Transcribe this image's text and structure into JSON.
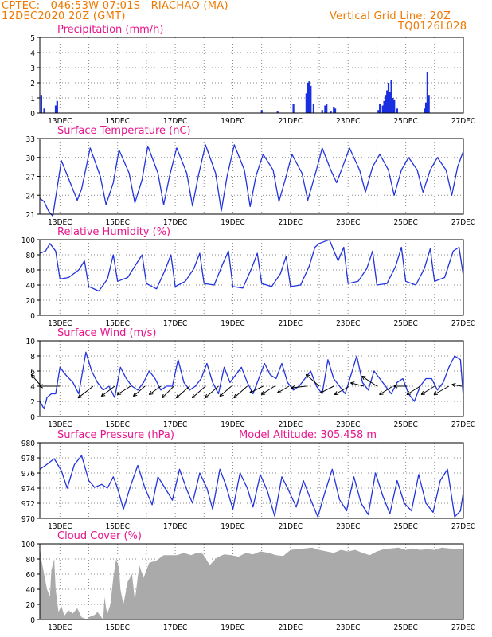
{
  "header": {
    "line1_left": "CPTEC:   046:53W-07:01S   RIACHAO (MA)",
    "line2_left": "12DEC2020 20Z (GMT)",
    "line1_right": "Vertical Grid Line: 20Z",
    "line2_right": "TQ0126L028"
  },
  "x_axis": {
    "labels": [
      "13DEC",
      "15DEC",
      "17DEC",
      "19DEC",
      "21DEC",
      "23DEC",
      "25DEC",
      "27DEC"
    ],
    "label_days": [
      13,
      15,
      17,
      19,
      21,
      23,
      25,
      27
    ],
    "start_day": 12.3,
    "end_day": 27.0
  },
  "colors": {
    "line": "#2233dd",
    "bar": "#1a2fe0",
    "cloud": "#aaaaaa",
    "title": "#e8168c",
    "header": "#f07800",
    "grid": "#888888"
  },
  "extra": {
    "model_altitude": "Model Altitude: 305.458 m"
  },
  "chart_data": [
    {
      "id": "precip",
      "type": "bar",
      "title": "Precipitation (mm/h)",
      "ylim": [
        0,
        5
      ],
      "yticks": [
        0,
        1,
        2,
        3,
        4,
        5
      ],
      "x": [
        12.35,
        12.45,
        12.85,
        12.9,
        20.0,
        20.55,
        21.1,
        21.55,
        21.6,
        21.65,
        21.7,
        21.8,
        22.1,
        22.2,
        22.25,
        22.4,
        22.5,
        22.55,
        24.05,
        24.1,
        24.2,
        24.25,
        24.3,
        24.35,
        24.4,
        24.45,
        24.5,
        24.55,
        24.6,
        24.7,
        25.65,
        25.7,
        25.75,
        25.8
      ],
      "values": [
        1.2,
        0.3,
        0.5,
        0.8,
        0.2,
        0.1,
        0.6,
        1.3,
        2.0,
        2.1,
        1.8,
        0.6,
        0.2,
        0.5,
        0.6,
        0.1,
        0.4,
        0.3,
        0.2,
        0.6,
        0.5,
        0.8,
        1.2,
        1.5,
        2.0,
        1.4,
        2.2,
        1.0,
        0.9,
        0.3,
        0.3,
        0.7,
        2.7,
        1.2
      ]
    },
    {
      "id": "temp",
      "type": "line",
      "title": "Surface Temperature (nC)",
      "ylim": [
        21,
        33
      ],
      "yticks": [
        21,
        24,
        27,
        30,
        33
      ],
      "x": [
        12.3,
        12.45,
        12.6,
        12.75,
        13.05,
        13.4,
        13.6,
        13.75,
        14.05,
        14.4,
        14.6,
        14.85,
        15.05,
        15.4,
        15.6,
        15.85,
        16.05,
        16.4,
        16.6,
        16.8,
        17.05,
        17.4,
        17.6,
        17.8,
        18.05,
        18.4,
        18.6,
        18.8,
        19.05,
        19.4,
        19.6,
        19.8,
        20.05,
        20.4,
        20.6,
        20.85,
        21.05,
        21.4,
        21.6,
        21.9,
        22.1,
        22.4,
        22.6,
        22.85,
        23.05,
        23.4,
        23.6,
        23.85,
        24.1,
        24.4,
        24.6,
        24.85,
        25.1,
        25.4,
        25.6,
        25.85,
        26.1,
        26.4,
        26.6,
        26.8,
        27.0
      ],
      "values": [
        23.5,
        23.0,
        21.5,
        20.7,
        29.5,
        25.5,
        23.2,
        25.0,
        31.5,
        27.0,
        22.5,
        26.0,
        31.2,
        27.5,
        22.8,
        26.5,
        31.8,
        27.5,
        22.5,
        27.0,
        31.5,
        27.5,
        22.3,
        27.0,
        32.0,
        27.5,
        21.5,
        27.0,
        32.0,
        28.0,
        22.2,
        27.0,
        30.5,
        28.0,
        23.0,
        27.0,
        30.5,
        27.5,
        23.2,
        28.0,
        31.5,
        28.0,
        26.0,
        29.0,
        31.5,
        28.0,
        24.5,
        28.5,
        30.5,
        28.0,
        24.0,
        28.0,
        30.0,
        28.0,
        24.5,
        28.0,
        30.0,
        28.0,
        24.0,
        28.5,
        31.0
      ]
    },
    {
      "id": "rh",
      "type": "line",
      "title": "Relative Humidity (%)",
      "ylim": [
        0,
        100
      ],
      "yticks": [
        0,
        20,
        40,
        60,
        80,
        100
      ],
      "x": [
        12.3,
        12.5,
        12.65,
        12.85,
        13.0,
        13.3,
        13.65,
        13.85,
        14.0,
        14.35,
        14.65,
        14.85,
        15.0,
        15.35,
        15.65,
        15.85,
        16.0,
        16.35,
        16.65,
        16.85,
        17.0,
        17.35,
        17.65,
        17.85,
        18.0,
        18.35,
        18.65,
        18.85,
        19.0,
        19.35,
        19.65,
        19.85,
        20.0,
        20.35,
        20.65,
        20.85,
        21.0,
        21.35,
        21.65,
        21.85,
        22.0,
        22.35,
        22.65,
        22.85,
        23.0,
        23.35,
        23.65,
        23.85,
        24.0,
        24.35,
        24.65,
        24.85,
        25.0,
        25.35,
        25.65,
        25.85,
        26.0,
        26.35,
        26.65,
        26.85,
        27.0
      ],
      "values": [
        82,
        85,
        95,
        85,
        48,
        50,
        60,
        72,
        38,
        32,
        48,
        80,
        45,
        50,
        68,
        80,
        42,
        35,
        60,
        80,
        38,
        45,
        62,
        82,
        42,
        40,
        68,
        85,
        38,
        36,
        62,
        82,
        42,
        38,
        55,
        78,
        38,
        40,
        65,
        90,
        95,
        100,
        72,
        90,
        42,
        45,
        62,
        85,
        40,
        42,
        65,
        90,
        45,
        40,
        62,
        88,
        45,
        50,
        85,
        90,
        52
      ]
    },
    {
      "id": "wind",
      "type": "line",
      "title": "Surface Wind (m/s)",
      "ylim": [
        0,
        10
      ],
      "yticks": [
        0,
        2,
        4,
        6,
        8,
        10
      ],
      "x": [
        12.3,
        12.45,
        12.55,
        12.7,
        12.85,
        13.0,
        13.2,
        13.45,
        13.65,
        13.9,
        14.1,
        14.3,
        14.5,
        14.7,
        14.9,
        15.1,
        15.3,
        15.5,
        15.7,
        15.9,
        16.1,
        16.3,
        16.5,
        16.7,
        16.9,
        17.1,
        17.3,
        17.5,
        17.7,
        17.9,
        18.1,
        18.3,
        18.5,
        18.7,
        18.9,
        19.1,
        19.3,
        19.5,
        19.7,
        19.9,
        20.1,
        20.3,
        20.5,
        20.7,
        20.9,
        21.1,
        21.3,
        21.5,
        21.7,
        21.9,
        22.1,
        22.3,
        22.5,
        22.7,
        22.9,
        23.1,
        23.3,
        23.5,
        23.7,
        23.9,
        24.1,
        24.3,
        24.5,
        24.7,
        24.9,
        25.1,
        25.3,
        25.5,
        25.7,
        25.9,
        26.1,
        26.3,
        26.5,
        26.7,
        26.9,
        27.0
      ],
      "values": [
        2.0,
        1.0,
        2.5,
        3.0,
        3.0,
        6.5,
        5.5,
        4.5,
        3.0,
        8.5,
        6.0,
        4.5,
        3.5,
        4.0,
        2.5,
        6.5,
        5.0,
        4.0,
        3.5,
        4.5,
        6.0,
        5.0,
        3.5,
        4.0,
        4.0,
        7.5,
        4.5,
        3.5,
        4.0,
        5.0,
        7.0,
        4.5,
        3.0,
        6.5,
        4.5,
        5.5,
        6.5,
        4.5,
        3.0,
        5.0,
        7.0,
        5.5,
        5.0,
        7.0,
        4.5,
        3.5,
        4.0,
        5.0,
        6.0,
        4.0,
        3.0,
        7.5,
        5.0,
        4.0,
        3.0,
        5.5,
        8.0,
        4.5,
        3.5,
        6.0,
        5.0,
        4.0,
        3.0,
        4.5,
        5.0,
        3.0,
        2.0,
        4.0,
        5.0,
        5.0,
        3.5,
        4.5,
        6.5,
        8.0,
        7.5,
        2.5
      ],
      "arrows": [
        {
          "x": 12.35,
          "u": 3.0,
          "v": -3.5
        },
        {
          "x": 13.0,
          "u": 6.5,
          "v": 0.0
        },
        {
          "x": 14.15,
          "u": 4.5,
          "v": 3.5
        },
        {
          "x": 14.9,
          "u": 4.0,
          "v": 3.0
        },
        {
          "x": 15.45,
          "u": 4.0,
          "v": 2.5
        },
        {
          "x": 15.95,
          "u": 3.5,
          "v": 3.0
        },
        {
          "x": 16.5,
          "u": 3.5,
          "v": 2.5
        },
        {
          "x": 16.95,
          "u": 3.5,
          "v": 3.5
        },
        {
          "x": 17.5,
          "u": 4.0,
          "v": 3.5
        },
        {
          "x": 18.05,
          "u": 4.0,
          "v": 3.5
        },
        {
          "x": 18.5,
          "u": 4.0,
          "v": 3.5
        },
        {
          "x": 18.95,
          "u": 3.5,
          "v": 3.0
        },
        {
          "x": 19.5,
          "u": 4.0,
          "v": 3.5
        },
        {
          "x": 20.05,
          "u": 4.0,
          "v": 2.0
        },
        {
          "x": 20.45,
          "u": 4.0,
          "v": 2.5
        },
        {
          "x": 20.95,
          "u": 3.5,
          "v": 2.0
        },
        {
          "x": 21.55,
          "u": 4.5,
          "v": 0.5
        },
        {
          "x": 22.0,
          "u": 4.0,
          "v": -3.5
        },
        {
          "x": 22.5,
          "u": 4.0,
          "v": 2.0
        },
        {
          "x": 23.05,
          "u": 4.5,
          "v": 2.5
        },
        {
          "x": 23.55,
          "u": 4.0,
          "v": -1.0
        },
        {
          "x": 24.0,
          "u": 4.5,
          "v": -3.0
        },
        {
          "x": 24.55,
          "u": 4.0,
          "v": 2.5
        },
        {
          "x": 25.05,
          "u": 4.0,
          "v": 0.0
        },
        {
          "x": 25.5,
          "u": 4.0,
          "v": 2.5
        },
        {
          "x": 26.0,
          "u": 4.0,
          "v": 2.5
        },
        {
          "x": 26.5,
          "u": 4.5,
          "v": 2.5
        },
        {
          "x": 26.95,
          "u": 3.0,
          "v": -0.5
        }
      ]
    },
    {
      "id": "pres",
      "type": "line",
      "title": "Surface Pressure (hPa)",
      "ylim": [
        970,
        980
      ],
      "yticks": [
        970,
        972,
        974,
        976,
        978,
        980
      ],
      "x": [
        12.3,
        12.5,
        12.8,
        13.05,
        13.25,
        13.5,
        13.75,
        14.0,
        14.2,
        14.45,
        14.65,
        14.85,
        15.0,
        15.2,
        15.45,
        15.7,
        15.95,
        16.2,
        16.4,
        16.65,
        16.9,
        17.15,
        17.4,
        17.6,
        17.85,
        18.1,
        18.3,
        18.55,
        18.75,
        19.0,
        19.25,
        19.5,
        19.7,
        19.95,
        20.2,
        20.45,
        20.7,
        20.9,
        21.2,
        21.45,
        21.7,
        21.95,
        22.2,
        22.45,
        22.7,
        22.95,
        23.2,
        23.45,
        23.7,
        23.95,
        24.2,
        24.45,
        24.7,
        24.95,
        25.2,
        25.45,
        25.7,
        25.95,
        26.2,
        26.45,
        26.7,
        26.9,
        27.0
      ],
      "values": [
        976.5,
        977.0,
        977.9,
        976.3,
        974.0,
        977.1,
        978.3,
        975.0,
        974.1,
        974.5,
        974.0,
        975.5,
        974.0,
        971.2,
        974.3,
        977.0,
        974.0,
        971.8,
        975.5,
        974.0,
        972.4,
        976.5,
        973.8,
        972.0,
        976.0,
        974.0,
        971.2,
        976.5,
        974.5,
        971.2,
        976.0,
        974.0,
        971.5,
        975.8,
        973.6,
        970.3,
        975.5,
        974.0,
        971.5,
        975.0,
        972.5,
        970.2,
        973.5,
        976.5,
        972.5,
        971.0,
        975.5,
        972.0,
        970.5,
        976.0,
        973.0,
        970.6,
        975.0,
        972.0,
        971.0,
        975.8,
        972.0,
        970.8,
        975.0,
        976.5,
        970.2,
        971.0,
        973.5
      ]
    },
    {
      "id": "cloud",
      "type": "area",
      "title": "Cloud Cover (%)",
      "ylim": [
        0,
        100
      ],
      "yticks": [
        0,
        20,
        40,
        60,
        80,
        100
      ],
      "x": [
        12.3,
        12.35,
        12.45,
        12.55,
        12.65,
        12.7,
        12.8,
        12.85,
        12.95,
        13.05,
        13.15,
        13.3,
        13.45,
        13.6,
        13.75,
        13.95,
        14.05,
        14.2,
        14.3,
        14.4,
        14.5,
        14.55,
        14.6,
        14.65,
        14.75,
        14.85,
        14.95,
        15.05,
        15.1,
        15.2,
        15.35,
        15.5,
        15.6,
        15.75,
        15.9,
        16.1,
        16.35,
        16.6,
        16.8,
        17.05,
        17.3,
        17.55,
        17.75,
        17.95,
        18.2,
        18.45,
        18.7,
        18.95,
        19.2,
        19.45,
        19.7,
        19.95,
        20.25,
        20.5,
        20.75,
        21.0,
        21.25,
        21.5,
        21.75,
        22.0,
        22.25,
        22.5,
        22.75,
        23.0,
        23.25,
        23.5,
        23.75,
        24.0,
        24.25,
        24.5,
        24.75,
        25.0,
        25.25,
        25.5,
        25.75,
        26.0,
        26.25,
        26.5,
        26.75,
        27.0
      ],
      "values": [
        95,
        80,
        60,
        40,
        30,
        65,
        80,
        40,
        10,
        18,
        5,
        12,
        8,
        15,
        3,
        0,
        4,
        6,
        10,
        5,
        0,
        30,
        15,
        8,
        20,
        55,
        80,
        68,
        40,
        20,
        50,
        60,
        25,
        72,
        55,
        75,
        78,
        85,
        85,
        85,
        88,
        85,
        88,
        87,
        72,
        82,
        86,
        85,
        83,
        88,
        86,
        90,
        88,
        85,
        84,
        92,
        93,
        94,
        95,
        92,
        90,
        88,
        92,
        90,
        92,
        88,
        85,
        90,
        93,
        94,
        95,
        92,
        94,
        92,
        93,
        92,
        95,
        94,
        93,
        93
      ]
    }
  ]
}
